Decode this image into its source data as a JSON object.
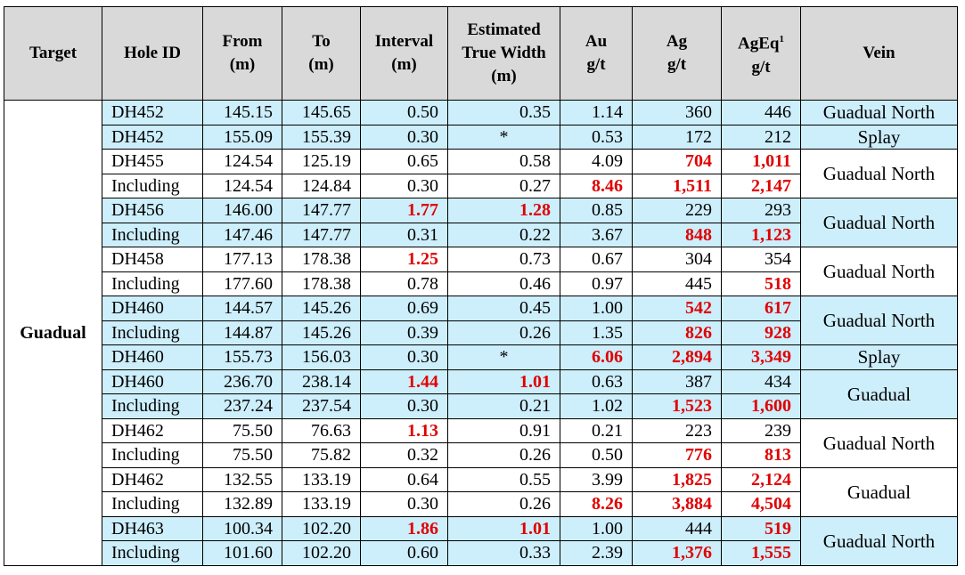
{
  "headers": {
    "target": "Target",
    "hole_id": "Hole ID",
    "from": "From (m)",
    "to": "To (m)",
    "interval": "Interval (m)",
    "true_width": "Estimated True Width (m)",
    "au": "Au g/t",
    "ag": "Ag g/t",
    "ageq": "AgEq",
    "ageq_sup": "1",
    "ageq_unit": "g/t",
    "vein": "Vein"
  },
  "target_value": "Guadual",
  "highlight_color": "#e00000",
  "band_color": "#cdeefb",
  "rows": [
    {
      "hole": "DH452",
      "from": "145.15",
      "to": "145.65",
      "interval": "0.50",
      "tw": "0.35",
      "au": "1.14",
      "ag": "360",
      "ageq": "446",
      "band": "blue",
      "red": []
    },
    {
      "hole": "DH452",
      "from": "155.09",
      "to": "155.39",
      "interval": "0.30",
      "tw": "*",
      "au": "0.53",
      "ag": "172",
      "ageq": "212",
      "band": "blue",
      "red": []
    },
    {
      "hole": "DH455",
      "from": "124.54",
      "to": "125.19",
      "interval": "0.65",
      "tw": "0.58",
      "au": "4.09",
      "ag": "704",
      "ageq": "1,011",
      "band": "white",
      "red": [
        "ag",
        "ageq"
      ]
    },
    {
      "hole": "Including",
      "from": "124.54",
      "to": "124.84",
      "interval": "0.30",
      "tw": "0.27",
      "au": "8.46",
      "ag": "1,511",
      "ageq": "2,147",
      "band": "white",
      "red": [
        "au",
        "ag",
        "ageq"
      ]
    },
    {
      "hole": "DH456",
      "from": "146.00",
      "to": "147.77",
      "interval": "1.77",
      "tw": "1.28",
      "au": "0.85",
      "ag": "229",
      "ageq": "293",
      "band": "blue",
      "red": [
        "interval",
        "tw"
      ]
    },
    {
      "hole": "Including",
      "from": "147.46",
      "to": "147.77",
      "interval": "0.31",
      "tw": "0.22",
      "au": "3.67",
      "ag": "848",
      "ageq": "1,123",
      "band": "blue",
      "red": [
        "ag",
        "ageq"
      ]
    },
    {
      "hole": "DH458",
      "from": "177.13",
      "to": "178.38",
      "interval": "1.25",
      "tw": "0.73",
      "au": "0.67",
      "ag": "304",
      "ageq": "354",
      "band": "white",
      "red": [
        "interval"
      ]
    },
    {
      "hole": "Including",
      "from": "177.60",
      "to": "178.38",
      "interval": "0.78",
      "tw": "0.46",
      "au": "0.97",
      "ag": "445",
      "ageq": "518",
      "band": "white",
      "red": [
        "ageq"
      ]
    },
    {
      "hole": "DH460",
      "from": "144.57",
      "to": "145.26",
      "interval": "0.69",
      "tw": "0.45",
      "au": "1.00",
      "ag": "542",
      "ageq": "617",
      "band": "blue",
      "red": [
        "ag",
        "ageq"
      ]
    },
    {
      "hole": "Including",
      "from": "144.87",
      "to": "145.26",
      "interval": "0.39",
      "tw": "0.26",
      "au": "1.35",
      "ag": "826",
      "ageq": "928",
      "band": "blue",
      "red": [
        "ag",
        "ageq"
      ]
    },
    {
      "hole": "DH460",
      "from": "155.73",
      "to": "156.03",
      "interval": "0.30",
      "tw": "*",
      "au": "6.06",
      "ag": "2,894",
      "ageq": "3,349",
      "band": "blue",
      "red": [
        "au",
        "ag",
        "ageq"
      ]
    },
    {
      "hole": "DH460",
      "from": "236.70",
      "to": "238.14",
      "interval": "1.44",
      "tw": "1.01",
      "au": "0.63",
      "ag": "387",
      "ageq": "434",
      "band": "blue",
      "red": [
        "interval",
        "tw"
      ]
    },
    {
      "hole": "Including",
      "from": "237.24",
      "to": "237.54",
      "interval": "0.30",
      "tw": "0.21",
      "au": "1.02",
      "ag": "1,523",
      "ageq": "1,600",
      "band": "blue",
      "red": [
        "ag",
        "ageq"
      ]
    },
    {
      "hole": "DH462",
      "from": "75.50",
      "to": "76.63",
      "interval": "1.13",
      "tw": "0.91",
      "au": "0.21",
      "ag": "223",
      "ageq": "239",
      "band": "white",
      "red": [
        "interval"
      ]
    },
    {
      "hole": "Including",
      "from": "75.50",
      "to": "75.82",
      "interval": "0.32",
      "tw": "0.26",
      "au": "0.50",
      "ag": "776",
      "ageq": "813",
      "band": "white",
      "red": [
        "ag",
        "ageq"
      ]
    },
    {
      "hole": "DH462",
      "from": "132.55",
      "to": "133.19",
      "interval": "0.64",
      "tw": "0.55",
      "au": "3.99",
      "ag": "1,825",
      "ageq": "2,124",
      "band": "white",
      "red": [
        "ag",
        "ageq"
      ]
    },
    {
      "hole": "Including",
      "from": "132.89",
      "to": "133.19",
      "interval": "0.30",
      "tw": "0.26",
      "au": "8.26",
      "ag": "3,884",
      "ageq": "4,504",
      "band": "white",
      "red": [
        "au",
        "ag",
        "ageq"
      ]
    },
    {
      "hole": "DH463",
      "from": "100.34",
      "to": "102.20",
      "interval": "1.86",
      "tw": "1.01",
      "au": "1.00",
      "ag": "444",
      "ageq": "519",
      "band": "blue",
      "red": [
        "interval",
        "tw",
        "ageq"
      ]
    },
    {
      "hole": "Including",
      "from": "101.60",
      "to": "102.20",
      "interval": "0.60",
      "tw": "0.33",
      "au": "2.39",
      "ag": "1,376",
      "ageq": "1,555",
      "band": "blue",
      "red": [
        "ag",
        "ageq"
      ]
    }
  ],
  "veins": [
    {
      "start": 0,
      "span": 1,
      "label": "Guadual North",
      "band": "blue"
    },
    {
      "start": 1,
      "span": 1,
      "label": "Splay",
      "band": "blue"
    },
    {
      "start": 2,
      "span": 2,
      "label": "Guadual North",
      "band": "white"
    },
    {
      "start": 4,
      "span": 2,
      "label": "Guadual North",
      "band": "blue"
    },
    {
      "start": 6,
      "span": 2,
      "label": "Guadual North",
      "band": "white"
    },
    {
      "start": 8,
      "span": 2,
      "label": "Guadual North",
      "band": "blue"
    },
    {
      "start": 10,
      "span": 1,
      "label": "Splay",
      "band": "blue"
    },
    {
      "start": 11,
      "span": 2,
      "label": "Guadual",
      "band": "blue"
    },
    {
      "start": 13,
      "span": 2,
      "label": "Guadual North",
      "band": "white"
    },
    {
      "start": 15,
      "span": 2,
      "label": "Guadual",
      "band": "white"
    },
    {
      "start": 17,
      "span": 2,
      "label": "Guadual North",
      "band": "blue"
    }
  ]
}
